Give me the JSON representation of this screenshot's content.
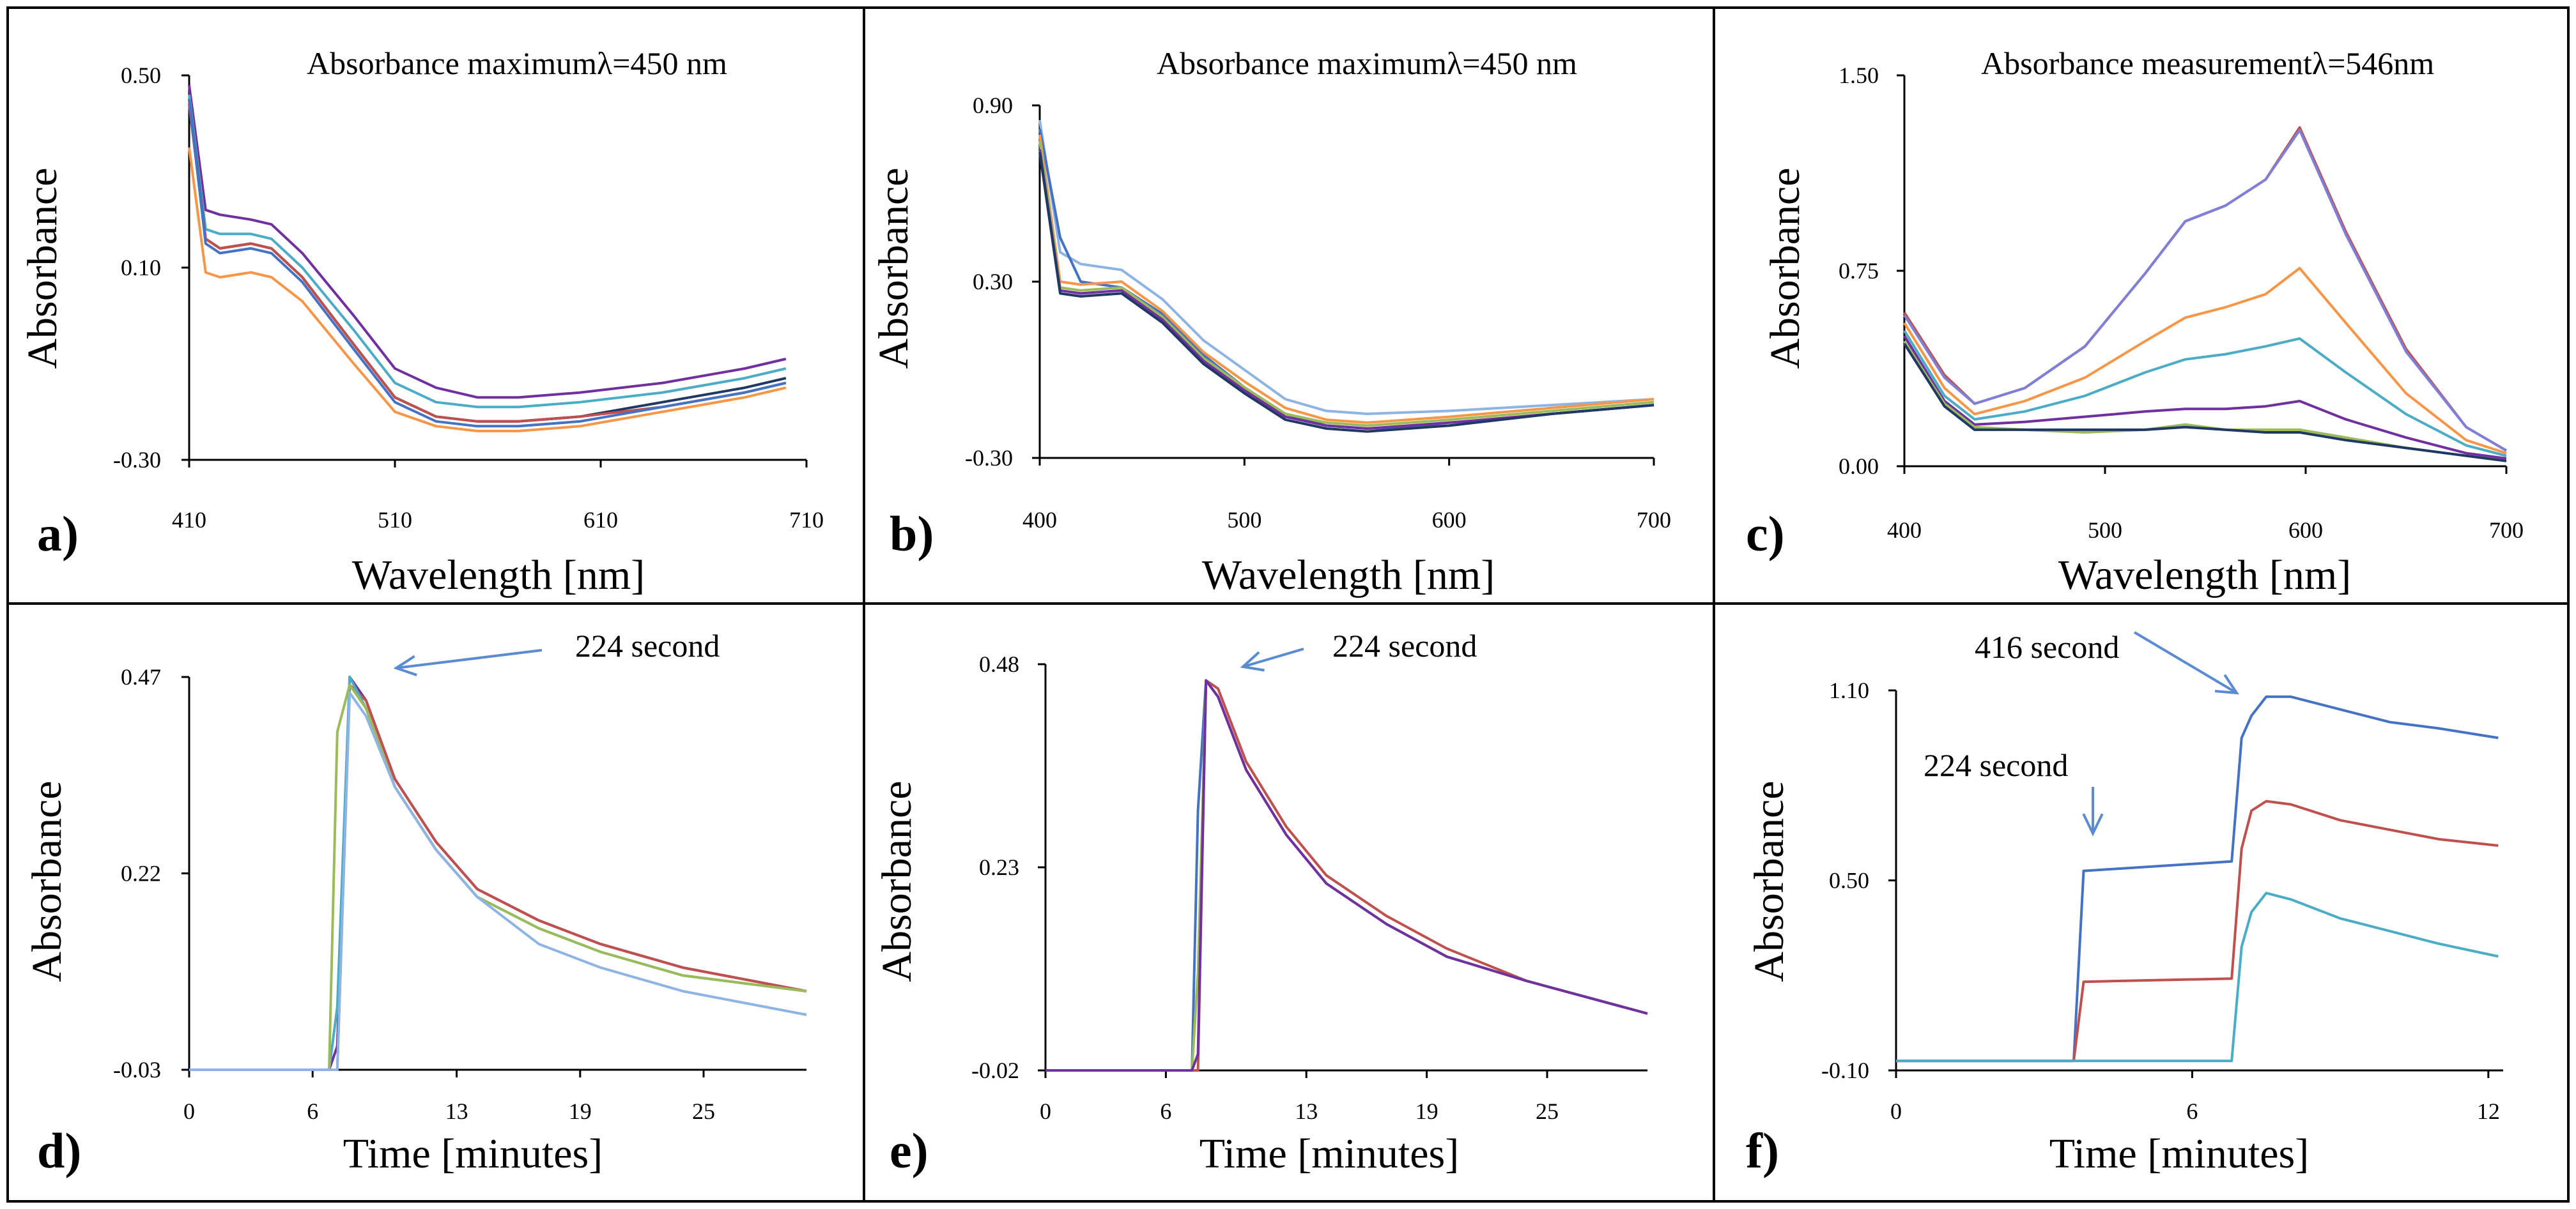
{
  "chart_data": [
    {
      "type": "line",
      "panel_label": "a)",
      "annotation": "Absorbance maximumλ=450 nm",
      "xlabel": "Wavelength  [nm]",
      "ylabel": "Absorbance",
      "xlim": [
        410,
        710
      ],
      "ylim": [
        -0.3,
        0.5
      ],
      "xticks": [
        "410",
        "510",
        "610",
        "710"
      ],
      "yticks": [
        "-0.30",
        "0.10",
        "0.50"
      ],
      "x": [
        410,
        418,
        425,
        440,
        450,
        465,
        490,
        510,
        530,
        550,
        570,
        600,
        640,
        680,
        700
      ],
      "series": [
        {
          "color": "#7030A0",
          "values": [
            0.48,
            0.22,
            0.21,
            0.2,
            0.19,
            0.13,
            0.0,
            -0.11,
            -0.15,
            -0.17,
            -0.17,
            -0.16,
            -0.14,
            -0.11,
            -0.09
          ]
        },
        {
          "color": "#4BACC6",
          "values": [
            0.46,
            0.18,
            0.17,
            0.17,
            0.16,
            0.1,
            -0.03,
            -0.14,
            -0.18,
            -0.19,
            -0.19,
            -0.18,
            -0.16,
            -0.13,
            -0.11
          ]
        },
        {
          "color": "#1F3864",
          "values": [
            0.45,
            0.16,
            0.14,
            0.15,
            0.14,
            0.08,
            -0.06,
            -0.17,
            -0.21,
            -0.22,
            -0.22,
            -0.21,
            -0.18,
            -0.15,
            -0.13
          ]
        },
        {
          "color": "#C0504D",
          "values": [
            0.44,
            0.16,
            0.14,
            0.15,
            0.14,
            0.08,
            -0.06,
            -0.17,
            -0.21,
            -0.22,
            -0.22,
            -0.21,
            -0.19,
            -0.16,
            -0.14
          ]
        },
        {
          "color": "#4472C4",
          "values": [
            0.45,
            0.15,
            0.13,
            0.14,
            0.13,
            0.07,
            -0.07,
            -0.18,
            -0.22,
            -0.23,
            -0.23,
            -0.22,
            -0.19,
            -0.16,
            -0.14
          ]
        },
        {
          "color": "#F79646",
          "values": [
            0.35,
            0.09,
            0.08,
            0.09,
            0.08,
            0.03,
            -0.1,
            -0.2,
            -0.23,
            -0.24,
            -0.24,
            -0.23,
            -0.2,
            -0.17,
            -0.15
          ]
        }
      ]
    },
    {
      "type": "line",
      "panel_label": "b)",
      "annotation": "Absorbance maximumλ=450 nm",
      "xlabel": "Wavelength  [nm]",
      "ylabel": "Absorbance",
      "xlim": [
        400,
        700
      ],
      "ylim": [
        -0.3,
        0.9
      ],
      "xticks": [
        "400",
        "500",
        "600",
        "700"
      ],
      "yticks": [
        "-0.30",
        "0.30",
        "0.90"
      ],
      "x": [
        400,
        410,
        420,
        440,
        460,
        480,
        500,
        520,
        540,
        560,
        600,
        650,
        700
      ],
      "series": [
        {
          "color": "#8EB4E3",
          "values": [
            0.85,
            0.4,
            0.36,
            0.34,
            0.24,
            0.1,
            0.0,
            -0.1,
            -0.14,
            -0.15,
            -0.14,
            -0.12,
            -0.1
          ]
        },
        {
          "color": "#4472C4",
          "values": [
            0.82,
            0.45,
            0.3,
            0.28,
            0.19,
            0.05,
            -0.06,
            -0.15,
            -0.19,
            -0.2,
            -0.19,
            -0.15,
            -0.12
          ]
        },
        {
          "color": "#F79646",
          "values": [
            0.8,
            0.3,
            0.29,
            0.3,
            0.2,
            0.06,
            -0.04,
            -0.13,
            -0.17,
            -0.18,
            -0.16,
            -0.13,
            -0.1
          ]
        },
        {
          "color": "#9BBB59",
          "values": [
            0.78,
            0.28,
            0.27,
            0.28,
            0.18,
            0.04,
            -0.06,
            -0.15,
            -0.18,
            -0.19,
            -0.17,
            -0.14,
            -0.11
          ]
        },
        {
          "color": "#7030A0",
          "values": [
            0.75,
            0.27,
            0.26,
            0.27,
            0.17,
            0.03,
            -0.07,
            -0.16,
            -0.19,
            -0.2,
            -0.18,
            -0.15,
            -0.12
          ]
        },
        {
          "color": "#1F3864",
          "values": [
            0.74,
            0.26,
            0.25,
            0.26,
            0.16,
            0.02,
            -0.08,
            -0.17,
            -0.2,
            -0.21,
            -0.19,
            -0.15,
            -0.12
          ]
        }
      ]
    },
    {
      "type": "line",
      "panel_label": "c)",
      "annotation": "Absorbance measurementλ=546nm",
      "xlabel": "Wavelength  [nm]",
      "ylabel": "Absorbance",
      "xlim": [
        400,
        700
      ],
      "ylim": [
        0,
        1.5
      ],
      "xticks": [
        "400",
        "500",
        "600",
        "700"
      ],
      "yticks": [
        "0.00",
        "0.75",
        "1.50"
      ],
      "x": [
        400,
        420,
        435,
        460,
        490,
        520,
        540,
        560,
        580,
        597,
        620,
        650,
        680,
        700
      ],
      "series": [
        {
          "color": "#C0504D",
          "values": [
            0.59,
            0.35,
            0.24,
            0.3,
            0.46,
            0.74,
            0.94,
            1.0,
            1.1,
            1.3,
            0.9,
            0.45,
            0.15,
            0.06
          ]
        },
        {
          "color": "#7F7FD8",
          "values": [
            0.58,
            0.34,
            0.24,
            0.3,
            0.46,
            0.74,
            0.94,
            1.0,
            1.1,
            1.29,
            0.89,
            0.44,
            0.15,
            0.06
          ]
        },
        {
          "color": "#F79646",
          "values": [
            0.55,
            0.3,
            0.2,
            0.25,
            0.34,
            0.48,
            0.57,
            0.61,
            0.66,
            0.76,
            0.55,
            0.28,
            0.1,
            0.05
          ]
        },
        {
          "color": "#4BACC6",
          "values": [
            0.52,
            0.27,
            0.18,
            0.21,
            0.27,
            0.36,
            0.41,
            0.43,
            0.46,
            0.49,
            0.36,
            0.2,
            0.08,
            0.04
          ]
        },
        {
          "color": "#7030A0",
          "values": [
            0.5,
            0.25,
            0.16,
            0.17,
            0.19,
            0.21,
            0.22,
            0.22,
            0.23,
            0.25,
            0.18,
            0.11,
            0.05,
            0.03
          ]
        },
        {
          "color": "#9BBB59",
          "values": [
            0.48,
            0.24,
            0.15,
            0.14,
            0.13,
            0.14,
            0.16,
            0.14,
            0.14,
            0.14,
            0.11,
            0.07,
            0.04,
            0.02
          ]
        },
        {
          "color": "#1F3864",
          "values": [
            0.47,
            0.23,
            0.14,
            0.14,
            0.14,
            0.14,
            0.15,
            0.14,
            0.13,
            0.13,
            0.1,
            0.07,
            0.04,
            0.02
          ]
        }
      ]
    },
    {
      "type": "line",
      "panel_label": "d)",
      "annotation": "224 second",
      "xlabel": "Time  [minutes]",
      "ylabel": "Absorbance",
      "xlim": [
        0,
        30
      ],
      "ylim": [
        -0.03,
        0.47
      ],
      "xticks": [
        "0",
        "6",
        "13",
        "19",
        "25"
      ],
      "yticks": [
        "-0.03",
        "0.22",
        "0.47"
      ],
      "x": [
        0,
        6.8,
        7.2,
        7.8,
        8.6,
        10,
        12,
        14,
        17,
        20,
        24,
        30
      ],
      "series": [
        {
          "color": "#7030A0",
          "values": [
            -0.03,
            -0.03,
            0.0,
            0.47,
            0.44,
            0.34,
            0.26,
            0.2,
            0.16,
            0.13,
            0.1,
            0.07
          ]
        },
        {
          "color": "#C0504D",
          "values": [
            -0.03,
            -0.03,
            -0.03,
            0.46,
            0.44,
            0.34,
            0.26,
            0.2,
            0.16,
            0.13,
            0.1,
            0.07
          ]
        },
        {
          "color": "#4BACC6",
          "values": [
            -0.03,
            -0.03,
            0.05,
            0.47,
            0.43,
            0.33,
            0.25,
            0.19,
            0.15,
            0.12,
            0.09,
            0.07
          ]
        },
        {
          "color": "#9BBB59",
          "values": [
            -0.03,
            -0.03,
            0.4,
            0.46,
            0.43,
            0.33,
            0.25,
            0.19,
            0.15,
            0.12,
            0.09,
            0.07
          ]
        },
        {
          "color": "#8EB4E3",
          "values": [
            -0.03,
            -0.03,
            -0.03,
            0.45,
            0.42,
            0.33,
            0.25,
            0.19,
            0.13,
            0.1,
            0.07,
            0.04
          ]
        }
      ]
    },
    {
      "type": "line",
      "panel_label": "e)",
      "annotation": "224 second",
      "xlabel": "Time  [minutes]",
      "ylabel": "Absorbance",
      "xlim": [
        0,
        30
      ],
      "ylim": [
        -0.02,
        0.48
      ],
      "xticks": [
        "0",
        "6",
        "13",
        "19",
        "25"
      ],
      "yticks": [
        "-0.02",
        "0.23",
        "0.48"
      ],
      "x": [
        0,
        7.3,
        7.6,
        8.0,
        8.6,
        10,
        12,
        14,
        17,
        20,
        24,
        30
      ],
      "series": [
        {
          "color": "#C0504D",
          "values": [
            -0.02,
            -0.02,
            -0.02,
            0.46,
            0.45,
            0.36,
            0.28,
            0.22,
            0.17,
            0.13,
            0.09,
            0.05
          ]
        },
        {
          "color": "#4472C4",
          "values": [
            -0.02,
            -0.02,
            0.3,
            0.46,
            0.44,
            0.35,
            0.27,
            0.21,
            0.16,
            0.12,
            0.09,
            0.05
          ]
        },
        {
          "color": "#9BBB59",
          "values": [
            -0.02,
            -0.02,
            0.1,
            0.46,
            0.44,
            0.35,
            0.27,
            0.21,
            0.16,
            0.12,
            0.09,
            0.05
          ]
        },
        {
          "color": "#7030A0",
          "values": [
            -0.02,
            -0.02,
            0.0,
            0.46,
            0.44,
            0.35,
            0.27,
            0.21,
            0.16,
            0.12,
            0.09,
            0.05
          ]
        }
      ]
    },
    {
      "type": "line",
      "panel_label": "f)",
      "annotation": [
        "416 second",
        "224 second"
      ],
      "xlabel": "Time  [minutes]",
      "ylabel": "Absorbance",
      "xlim": [
        0,
        12.3
      ],
      "ylim": [
        -0.1,
        1.1
      ],
      "xticks": [
        "0",
        "6",
        "12"
      ],
      "yticks": [
        "-0.10",
        "0.50",
        "1.10"
      ],
      "x": [
        0,
        3.6,
        3.8,
        6.8,
        7.0,
        7.2,
        7.5,
        8.0,
        9,
        10,
        11,
        12.2
      ],
      "series": [
        {
          "color": "#4472C4",
          "values": [
            -0.07,
            -0.07,
            0.53,
            0.56,
            0.95,
            1.02,
            1.08,
            1.08,
            1.04,
            1.0,
            0.98,
            0.95
          ]
        },
        {
          "color": "#C0504D",
          "values": [
            -0.07,
            -0.07,
            0.18,
            0.19,
            0.6,
            0.72,
            0.75,
            0.74,
            0.69,
            0.66,
            0.63,
            0.61
          ]
        },
        {
          "color": "#4BACC6",
          "values": [
            -0.07,
            -0.07,
            -0.07,
            -0.07,
            0.29,
            0.4,
            0.46,
            0.44,
            0.38,
            0.34,
            0.3,
            0.26
          ]
        }
      ]
    }
  ]
}
